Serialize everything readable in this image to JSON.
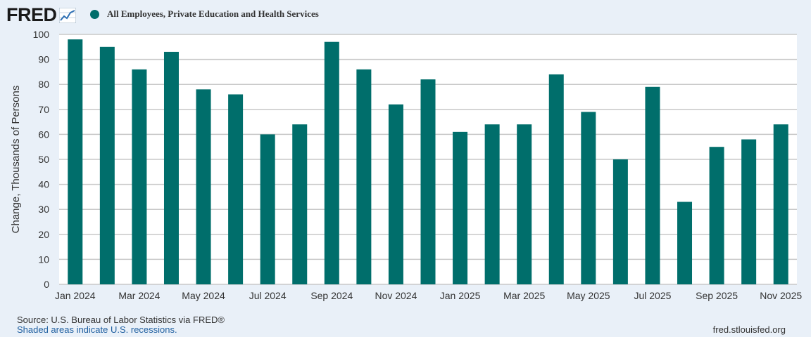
{
  "header": {
    "logo_text": "FRED",
    "logo_icon": "line-chart-icon",
    "legend_label": "All Employees, Private Education and Health Services",
    "legend_color": "#006e6b"
  },
  "footer": {
    "source": "Source: U.S. Bureau of Labor Statistics via FRED®",
    "recessions": "Shaded areas indicate U.S. recessions.",
    "site": "fred.stlouisfed.org"
  },
  "chart_data": {
    "type": "bar",
    "ylabel": "Change, Thousands of Persons",
    "ylim": [
      0,
      100
    ],
    "yticks": [
      0,
      10,
      20,
      30,
      40,
      50,
      60,
      70,
      80,
      90,
      100
    ],
    "grid": true,
    "bar_color": "#006e6b",
    "categories": [
      "Jan 2024",
      "Feb 2024",
      "Mar 2024",
      "Apr 2024",
      "May 2024",
      "Jun 2024",
      "Jul 2024",
      "Aug 2024",
      "Sep 2024",
      "Oct 2024",
      "Nov 2024",
      "Dec 2024",
      "Jan 2025",
      "Feb 2025",
      "Mar 2025",
      "Apr 2025",
      "May 2025",
      "Jun 2025",
      "Jul 2025",
      "Aug 2025",
      "Sep 2025",
      "Oct 2025",
      "Nov 2025"
    ],
    "xtick_labels": [
      "Jan 2024",
      "",
      "Mar 2024",
      "",
      "May 2024",
      "",
      "Jul 2024",
      "",
      "Sep 2024",
      "",
      "Nov 2024",
      "",
      "Jan 2025",
      "",
      "Mar 2025",
      "",
      "May 2025",
      "",
      "Jul 2025",
      "",
      "Sep 2025",
      "",
      "Nov 2025"
    ],
    "values": [
      98,
      95,
      86,
      93,
      78,
      76,
      60,
      64,
      97,
      86,
      72,
      82,
      61,
      64,
      64,
      84,
      69,
      50,
      79,
      33,
      55,
      58,
      64
    ]
  }
}
